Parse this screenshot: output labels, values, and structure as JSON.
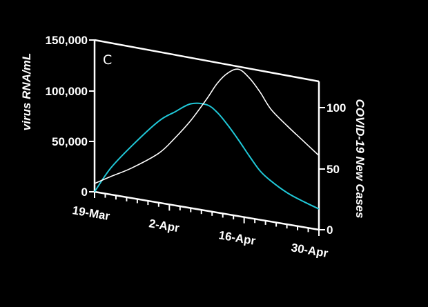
{
  "chart_data": {
    "type": "line",
    "panel_label": "C",
    "x": [
      "19-Mar",
      "22-Mar",
      "26-Mar",
      "31-Mar",
      "3-Apr",
      "6-Apr",
      "9-Apr",
      "11-Apr",
      "13-Apr",
      "15-Apr",
      "17-Apr",
      "19-Apr",
      "21-Apr",
      "24-Apr",
      "27-Apr",
      "30-Apr"
    ],
    "x_tick_labels": [
      "19-Mar",
      "2-Apr",
      "16-Apr",
      "30-Apr"
    ],
    "left_axis": {
      "label": "virus RNA/mL",
      "tick_labels": [
        "0",
        "50,000",
        "100,000",
        "150,000"
      ],
      "ylim": [
        0,
        150000
      ]
    },
    "right_axis": {
      "label": "COVID-19 New Cases",
      "tick_labels": [
        "0",
        "50",
        "100"
      ],
      "ylim": [
        0,
        110
      ]
    },
    "series": [
      {
        "axis": "left",
        "color": "#20c8d8",
        "values": [
          0,
          26000,
          52000,
          81000,
          93000,
          104000,
          106000,
          100000,
          89000,
          76000,
          62000,
          49000,
          41000,
          32000,
          26000,
          21000
        ]
      },
      {
        "axis": "right",
        "color": "#ffffff",
        "values": [
          6,
          13,
          22,
          36,
          49,
          64,
          82,
          95,
          104,
          108,
          103,
          94,
          83,
          73,
          64,
          55
        ]
      }
    ],
    "grid": false,
    "legend": "none"
  }
}
